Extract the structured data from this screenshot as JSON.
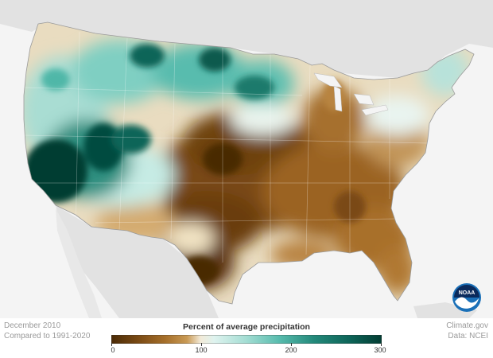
{
  "map": {
    "period": "December 2010",
    "baseline": "Compared to 1991-2020",
    "credit_site": "Climate.gov",
    "credit_data": "Data: NCEI",
    "logo_text": "NOAA"
  },
  "legend": {
    "title": "Percent of average precipitation",
    "ticks": [
      "0",
      "100",
      "200",
      "300"
    ],
    "colors": [
      "#4a2a06",
      "#7a4a14",
      "#a66f2a",
      "#c99a55",
      "#e8d0a2",
      "#f7f3ea",
      "#c9ece6",
      "#7fcfc2",
      "#2f9b8a",
      "#0d6559",
      "#033d33"
    ]
  },
  "colors": {
    "ocean": "#f4f4f4",
    "land_outside": "#e2e2e2",
    "dry": "#8a5a1c",
    "wet": "#0a5a4e",
    "noaa_blue": "#1a70b8"
  }
}
